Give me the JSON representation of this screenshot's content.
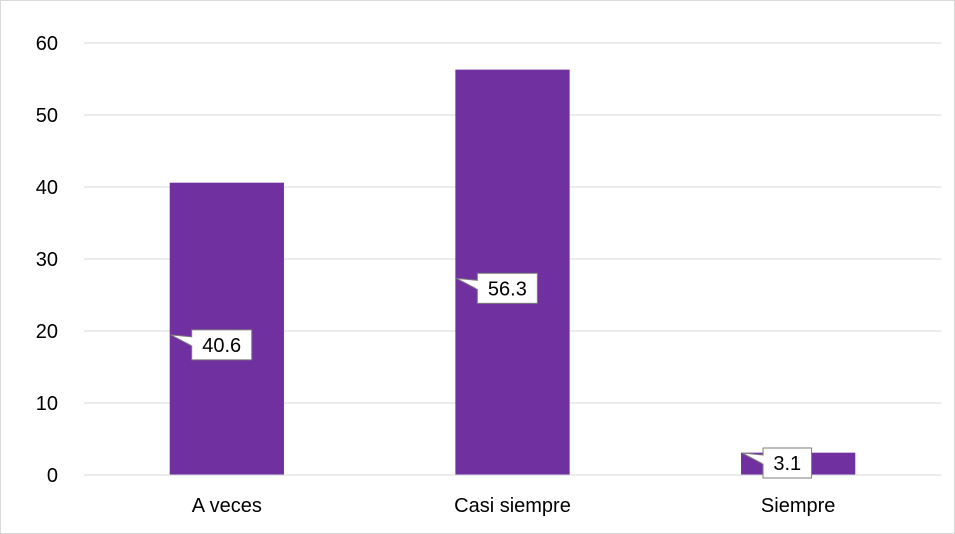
{
  "chart_data": {
    "type": "bar",
    "title": "",
    "xlabel": "",
    "ylabel": "",
    "categories": [
      "A veces",
      "Casi siempre",
      "Siempre"
    ],
    "values": [
      40.6,
      56.3,
      3.1
    ],
    "value_labels": [
      "40.6",
      "56.3",
      "3.1"
    ],
    "ylim": [
      0,
      60
    ],
    "yticks": [
      0,
      10,
      20,
      30,
      40,
      50,
      60
    ],
    "grid": true,
    "legend": "none",
    "bar_color": "#7030a0",
    "gridline_color": "#d9d9d9",
    "label_style": "callout"
  }
}
